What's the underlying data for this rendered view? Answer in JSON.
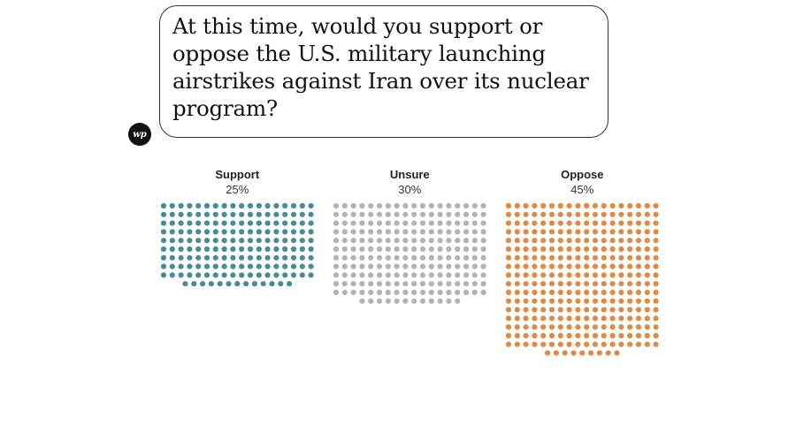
{
  "header": {
    "question": "At this time, would you support or oppose the U.S. military launching airstrikes against Iran over its nuclear program?",
    "logo_text": "wp"
  },
  "chart_data": {
    "type": "unit-dot",
    "title": "At this time, would you support or oppose the U.S. military launching airstrikes against Iran over its nuclear program?",
    "categories": [
      "Support",
      "Unsure",
      "Oppose"
    ],
    "values": [
      25,
      30,
      45
    ],
    "value_labels": [
      "25%",
      "30%",
      "45%"
    ],
    "colors": [
      "#4a8c96",
      "#b3b3b3",
      "#e08a45"
    ],
    "unit": "%"
  }
}
